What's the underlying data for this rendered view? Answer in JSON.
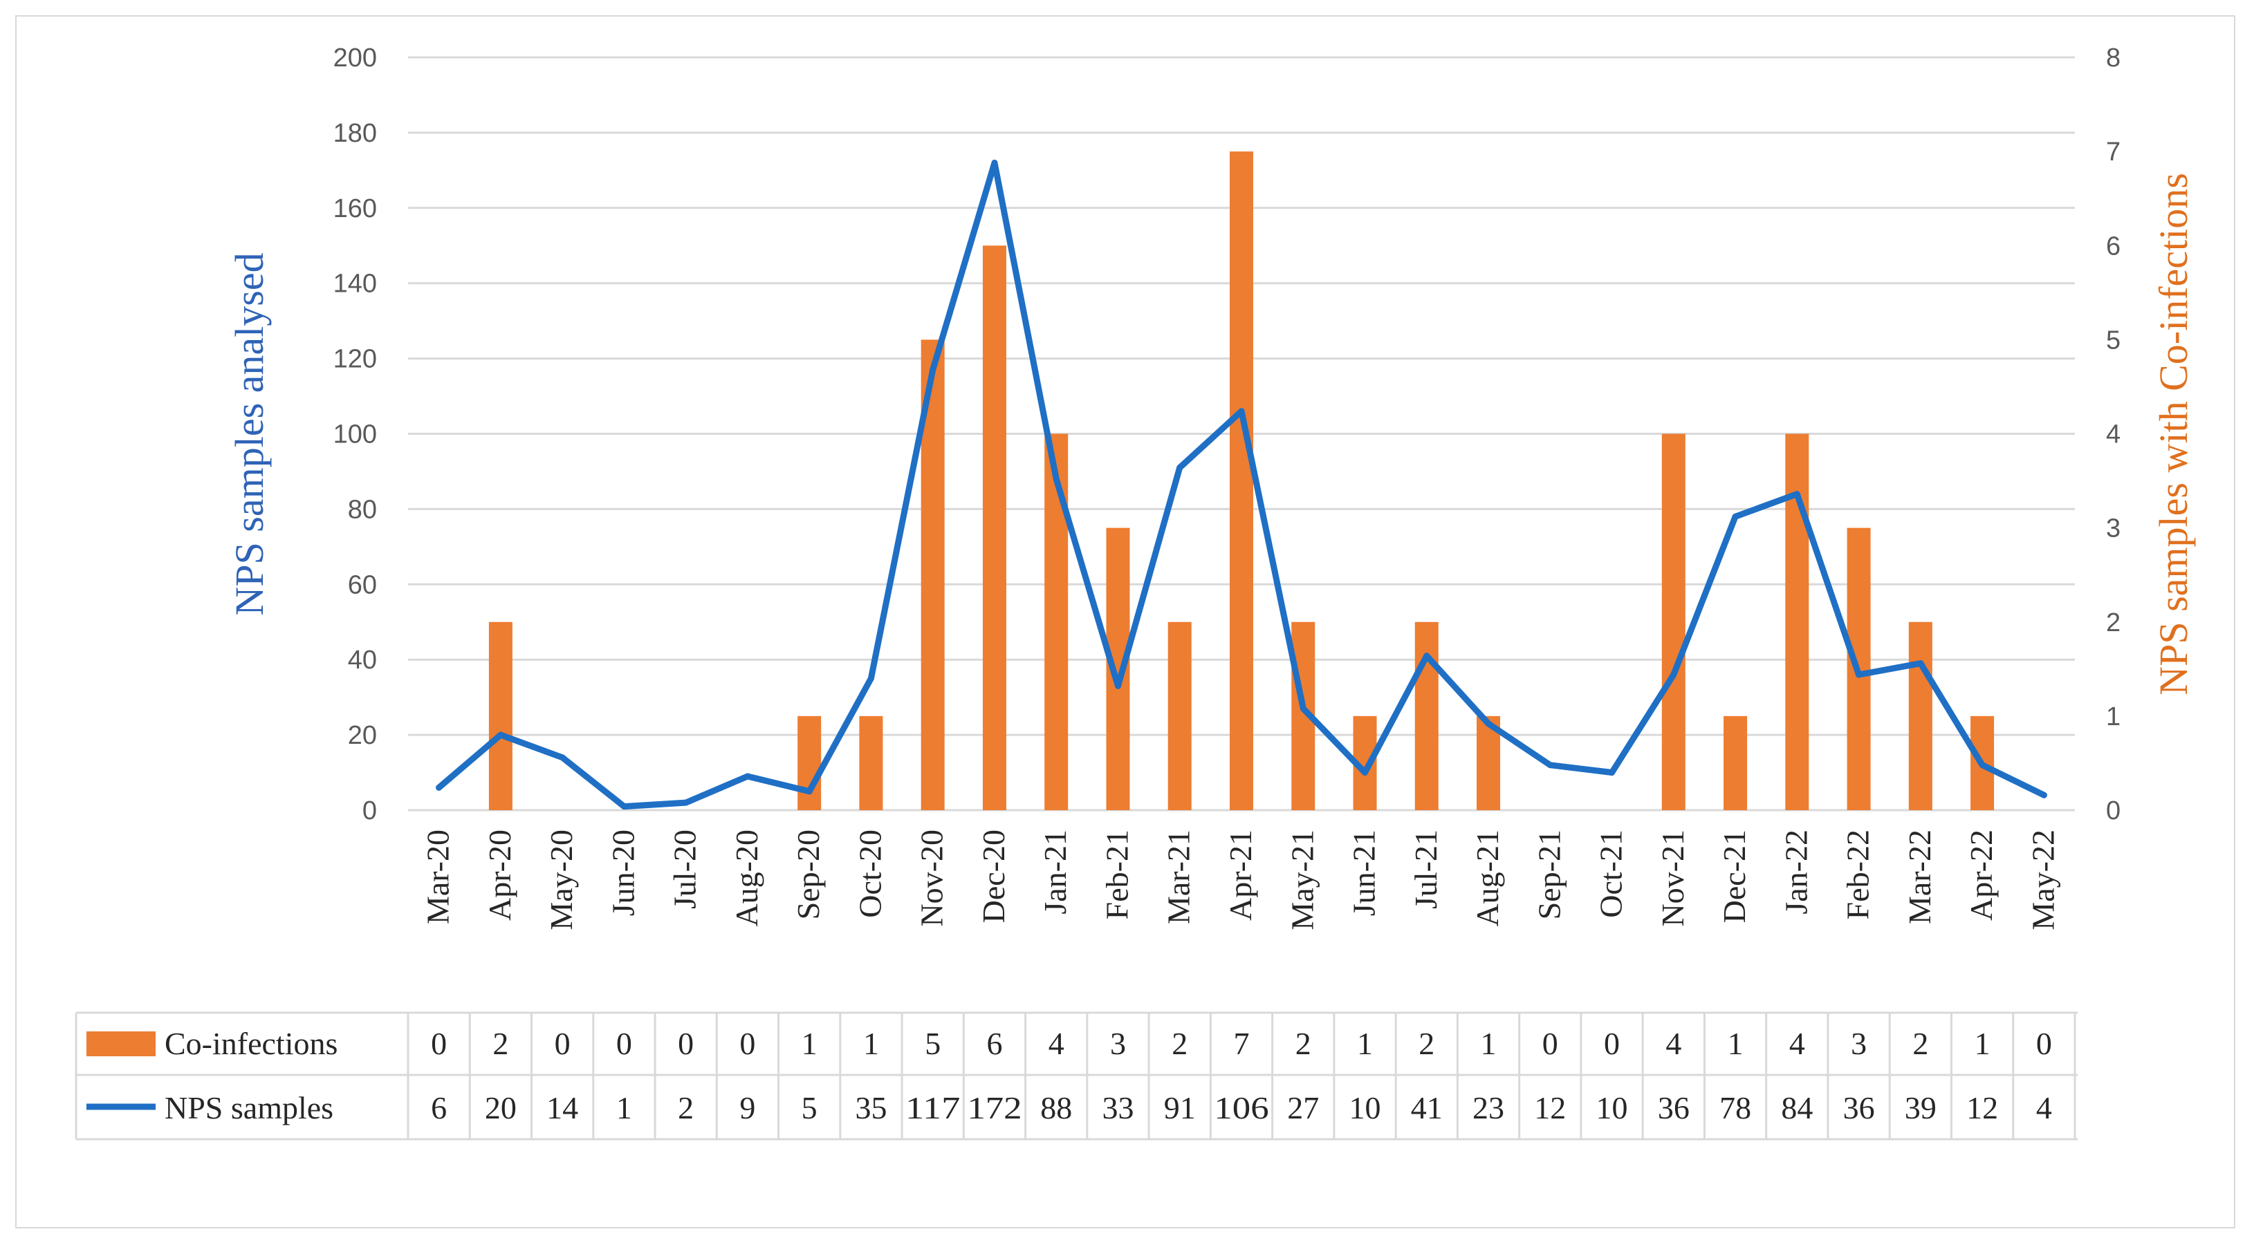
{
  "chart_data": {
    "type": "bar+line",
    "categories": [
      "Mar-20",
      "Apr-20",
      "May-20",
      "Jun-20",
      "Jul-20",
      "Aug-20",
      "Sep-20",
      "Oct-20",
      "Nov-20",
      "Dec-20",
      "Jan-21",
      "Feb-21",
      "Mar-21",
      "Apr-21",
      "May-21",
      "Jun-21",
      "Jul-21",
      "Aug-21",
      "Sep-21",
      "Oct-21",
      "Nov-21",
      "Dec-21",
      "Jan-22",
      "Feb-22",
      "Mar-22",
      "Apr-22",
      "May-22"
    ],
    "series": [
      {
        "name": "Co-infections",
        "kind": "bar",
        "axis": "right",
        "color": "#ED7D31",
        "values": [
          0,
          2,
          0,
          0,
          0,
          0,
          1,
          1,
          5,
          6,
          4,
          3,
          2,
          7,
          2,
          1,
          2,
          1,
          0,
          0,
          4,
          1,
          4,
          3,
          2,
          1,
          0
        ]
      },
      {
        "name": "NPS samples",
        "kind": "line",
        "axis": "left",
        "color": "#1F6FC5",
        "values": [
          6,
          20,
          14,
          1,
          2,
          9,
          5,
          35,
          117,
          172,
          88,
          33,
          91,
          106,
          27,
          10,
          41,
          23,
          12,
          10,
          36,
          78,
          84,
          36,
          39,
          12,
          4
        ]
      }
    ],
    "ylabel": "NPS samples analysed",
    "ylabel_right": "NPS samples with Co-infections",
    "ylim": [
      0,
      200
    ],
    "ylim_right": [
      0,
      8
    ],
    "yticks": [
      "0",
      "20",
      "40",
      "60",
      "80",
      "100",
      "120",
      "140",
      "160",
      "180",
      "200"
    ],
    "yticks_right": [
      "0",
      "1",
      "2",
      "3",
      "4",
      "5",
      "6",
      "7",
      "8"
    ],
    "grid": true,
    "legend": "data-table-below"
  }
}
